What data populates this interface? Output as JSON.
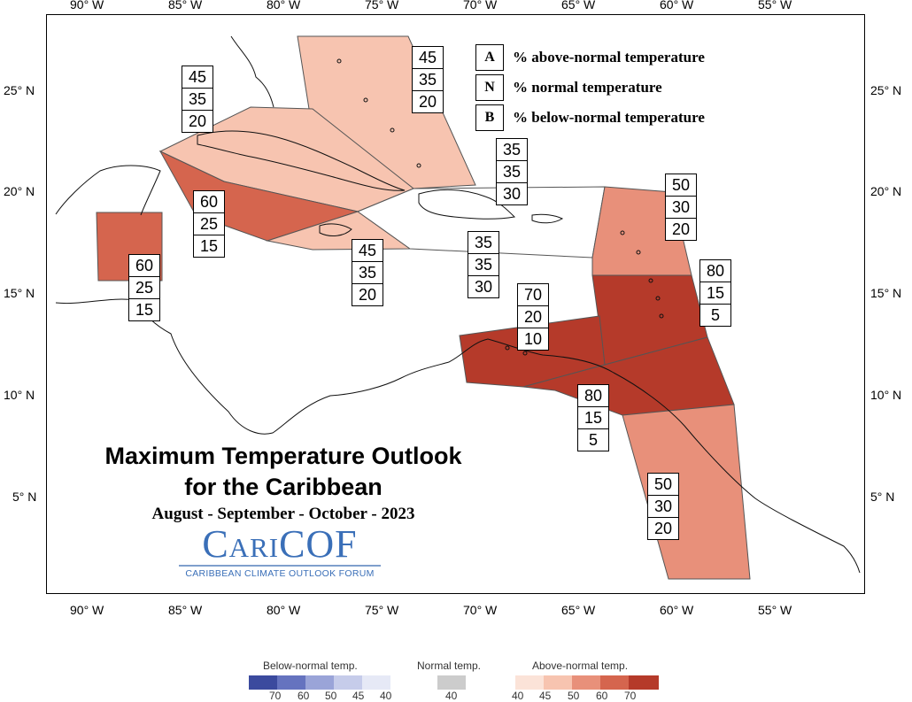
{
  "map": {
    "lon_labels": [
      "90° W",
      "85° W",
      "80° W",
      "75° W",
      "70° W",
      "65° W",
      "60° W",
      "55° W"
    ],
    "lat_labels": [
      "25° N",
      "20° N",
      "15° N",
      "10° N",
      "5° N"
    ],
    "region_colors": {
      "above_45": "#f7c4b0",
      "above_50": "#e8907a",
      "above_60": "#d5654e",
      "above_70": "#b53a2a",
      "above_80": "#b53a2a",
      "normal_like": "#ffffff"
    }
  },
  "legend": {
    "items": [
      {
        "key": "A",
        "text": "% above-normal temperature"
      },
      {
        "key": "N",
        "text": "% normal temperature"
      },
      {
        "key": "B",
        "text": "% below-normal temperature"
      }
    ]
  },
  "probabilities": [
    {
      "id": "bahamas",
      "values": [
        "45",
        "35",
        "20"
      ]
    },
    {
      "id": "cuba",
      "values": [
        "45",
        "35",
        "20"
      ]
    },
    {
      "id": "cayman",
      "values": [
        "60",
        "25",
        "15"
      ]
    },
    {
      "id": "belize",
      "values": [
        "60",
        "25",
        "15"
      ]
    },
    {
      "id": "jamaica",
      "values": [
        "45",
        "35",
        "20"
      ]
    },
    {
      "id": "hispaniola-north",
      "values": [
        "35",
        "35",
        "30"
      ]
    },
    {
      "id": "hispaniola-south",
      "values": [
        "35",
        "35",
        "30"
      ]
    },
    {
      "id": "leeward-north",
      "values": [
        "50",
        "30",
        "20"
      ]
    },
    {
      "id": "windward",
      "values": [
        "80",
        "15",
        "5"
      ]
    },
    {
      "id": "abc-islands",
      "values": [
        "70",
        "20",
        "10"
      ]
    },
    {
      "id": "trinidad",
      "values": [
        "80",
        "15",
        "5"
      ]
    },
    {
      "id": "guianas",
      "values": [
        "50",
        "30",
        "20"
      ]
    }
  ],
  "title": {
    "line1": "Maximum Temperature Outlook",
    "line2": "for the Caribbean",
    "period": "August - September - October - 2023"
  },
  "logo": {
    "word": "CariCOF",
    "subtitle": "CARIBBEAN CLIMATE OUTLOOK FORUM"
  },
  "colorbar": {
    "below": {
      "title": "Below-normal temp.",
      "labels": [
        "70",
        "60",
        "50",
        "45",
        "40"
      ],
      "colors": [
        "#3b4a9e",
        "#6573bf",
        "#9aa4d8",
        "#c6ccea",
        "#e6e9f6"
      ]
    },
    "normal": {
      "title": "Normal temp.",
      "labels": [
        "40"
      ],
      "colors": [
        "#cccccc"
      ]
    },
    "above": {
      "title": "Above-normal temp.",
      "labels": [
        "40",
        "45",
        "50",
        "60",
        "70"
      ],
      "colors": [
        "#fbe3d8",
        "#f7c4b0",
        "#e8907a",
        "#d5654e",
        "#b53a2a"
      ]
    }
  }
}
